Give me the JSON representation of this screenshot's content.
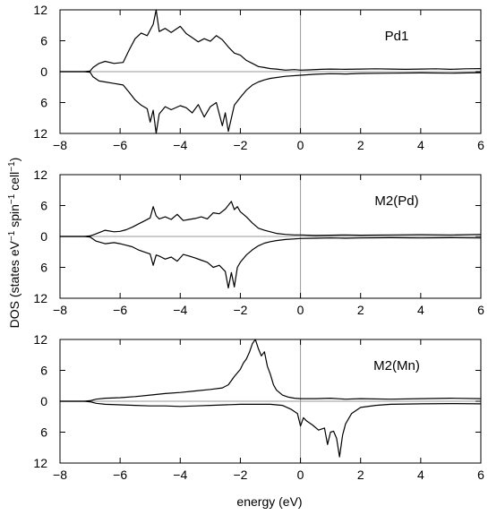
{
  "chart_data": {
    "type": "line",
    "ylabel_parts": [
      "DOS (states eV",
      "−1",
      " spin",
      "−1",
      " cell",
      "−1",
      ")"
    ],
    "xlabel": "energy (eV)",
    "xlim": [
      -8,
      6
    ],
    "xticks": [
      -8,
      -6,
      -4,
      -2,
      0,
      2,
      4,
      6
    ],
    "ylim": [
      -12,
      12
    ],
    "yticks": [
      12,
      6,
      0,
      6,
      12
    ],
    "panels": [
      {
        "label": "Pd1",
        "series": [
          {
            "spin": "up",
            "x": [
              -8,
              -7.2,
              -7,
              -6.9,
              -6.7,
              -6.5,
              -6.2,
              -5.9,
              -5.7,
              -5.5,
              -5.3,
              -5.1,
              -4.9,
              -4.8,
              -4.7,
              -4.5,
              -4.3,
              -4.0,
              -3.8,
              -3.6,
              -3.4,
              -3.2,
              -3.0,
              -2.8,
              -2.6,
              -2.4,
              -2.2,
              -2.0,
              -1.8,
              -1.6,
              -1.4,
              -1.2,
              -1.0,
              -0.8,
              -0.5,
              -0.2,
              0,
              0.3,
              0.7,
              1.0,
              1.5,
              2.0,
              2.5,
              3.0,
              3.5,
              4.0,
              4.5,
              5.0,
              5.5,
              6.0
            ],
            "y": [
              0,
              0,
              0.1,
              0.8,
              1.6,
              2.0,
              1.6,
              1.8,
              4.2,
              6.4,
              7.5,
              7.0,
              9.2,
              12.0,
              7.8,
              8.4,
              7.6,
              8.8,
              7.4,
              6.6,
              5.8,
              6.4,
              5.9,
              7.0,
              6.2,
              4.8,
              3.6,
              3.2,
              2.2,
              1.6,
              1.0,
              0.8,
              0.6,
              0.5,
              0.3,
              0.4,
              0.3,
              0.35,
              0.45,
              0.5,
              0.45,
              0.5,
              0.55,
              0.5,
              0.45,
              0.5,
              0.55,
              0.45,
              0.55,
              0.6
            ]
          },
          {
            "spin": "down",
            "x": [
              -8,
              -7.2,
              -7,
              -6.9,
              -6.7,
              -6.5,
              -6.2,
              -5.9,
              -5.7,
              -5.5,
              -5.3,
              -5.1,
              -5.0,
              -4.9,
              -4.8,
              -4.7,
              -4.5,
              -4.3,
              -4.0,
              -3.8,
              -3.6,
              -3.4,
              -3.2,
              -3.0,
              -2.8,
              -2.6,
              -2.5,
              -2.4,
              -2.2,
              -2.0,
              -1.8,
              -1.6,
              -1.4,
              -1.2,
              -1.0,
              -0.5,
              0,
              0.5,
              1.0,
              1.5,
              2.0,
              3.0,
              4.0,
              5.0,
              6.0
            ],
            "y": [
              0,
              0,
              -0.1,
              -1.0,
              -1.8,
              -2.0,
              -2.3,
              -2.6,
              -4.0,
              -5.5,
              -6.5,
              -7.2,
              -9.8,
              -7.5,
              -12.0,
              -8.2,
              -6.8,
              -7.4,
              -6.6,
              -7.0,
              -8.0,
              -6.4,
              -8.8,
              -6.8,
              -6.0,
              -10.5,
              -8.0,
              -11.6,
              -6.5,
              -5.0,
              -3.6,
              -2.6,
              -2.0,
              -1.6,
              -1.3,
              -0.9,
              -0.7,
              -0.5,
              -0.4,
              -0.45,
              -0.35,
              -0.3,
              -0.25,
              -0.3,
              -0.2
            ]
          }
        ]
      },
      {
        "label": "M2(Pd)",
        "series": [
          {
            "spin": "up",
            "x": [
              -8,
              -7.2,
              -7,
              -6.8,
              -6.5,
              -6.2,
              -6.0,
              -5.8,
              -5.6,
              -5.4,
              -5.2,
              -5.0,
              -4.9,
              -4.8,
              -4.7,
              -4.5,
              -4.3,
              -4.1,
              -3.9,
              -3.7,
              -3.5,
              -3.3,
              -3.1,
              -2.9,
              -2.7,
              -2.5,
              -2.3,
              -2.2,
              -2.1,
              -2.0,
              -1.8,
              -1.6,
              -1.4,
              -1.2,
              -1.0,
              -0.8,
              -0.5,
              -0.2,
              0,
              0.5,
              1.0,
              1.5,
              2.0,
              3.0,
              4.0,
              5.0,
              6.0
            ],
            "y": [
              0,
              0,
              0.1,
              0.5,
              1.2,
              0.9,
              1.0,
              1.3,
              1.8,
              2.4,
              3.0,
              3.6,
              5.8,
              4.0,
              3.4,
              3.8,
              3.3,
              4.3,
              3.1,
              3.3,
              3.5,
              3.8,
              3.4,
              4.6,
              4.4,
              5.3,
              6.8,
              5.2,
              5.8,
              4.8,
              3.8,
              2.6,
              1.6,
              1.2,
              0.9,
              0.6,
              0.4,
              0.3,
              0.3,
              0.2,
              0.25,
              0.3,
              0.25,
              0.3,
              0.35,
              0.3,
              0.4
            ]
          },
          {
            "spin": "down",
            "x": [
              -8,
              -7.2,
              -7,
              -6.8,
              -6.5,
              -6.2,
              -6.0,
              -5.8,
              -5.6,
              -5.4,
              -5.2,
              -5.0,
              -4.9,
              -4.8,
              -4.7,
              -4.5,
              -4.3,
              -4.1,
              -3.9,
              -3.7,
              -3.5,
              -3.3,
              -3.1,
              -2.9,
              -2.7,
              -2.5,
              -2.4,
              -2.3,
              -2.2,
              -2.1,
              -2.0,
              -1.8,
              -1.6,
              -1.4,
              -1.2,
              -1.0,
              -0.8,
              -0.5,
              0,
              0.5,
              1.0,
              1.5,
              2.0,
              3.0,
              4.0,
              5.0,
              6.0
            ],
            "y": [
              0,
              0,
              -0.1,
              -0.9,
              -1.4,
              -1.2,
              -1.4,
              -1.7,
              -2.0,
              -2.6,
              -3.0,
              -3.4,
              -5.6,
              -3.6,
              -3.8,
              -4.4,
              -4.0,
              -4.8,
              -3.5,
              -3.8,
              -4.2,
              -4.6,
              -5.0,
              -6.0,
              -5.6,
              -6.8,
              -10.0,
              -7.0,
              -9.8,
              -6.0,
              -5.0,
              -3.6,
              -2.6,
              -1.8,
              -1.3,
              -1.0,
              -0.8,
              -0.6,
              -0.4,
              -0.35,
              -0.3,
              -0.35,
              -0.3,
              -0.25,
              -0.3,
              -0.25,
              -0.3
            ]
          }
        ]
      },
      {
        "label": "M2(Mn)",
        "series": [
          {
            "spin": "up",
            "x": [
              -8,
              -7.2,
              -7,
              -6.8,
              -6.5,
              -6.0,
              -5.5,
              -5.0,
              -4.5,
              -4.0,
              -3.5,
              -3.0,
              -2.6,
              -2.4,
              -2.2,
              -2.0,
              -1.9,
              -1.8,
              -1.7,
              -1.6,
              -1.5,
              -1.4,
              -1.3,
              -1.2,
              -1.1,
              -1.0,
              -0.9,
              -0.8,
              -0.6,
              -0.4,
              -0.2,
              0,
              0.5,
              1.0,
              1.5,
              2.0,
              3.0,
              4.0,
              5.0,
              6.0
            ],
            "y": [
              0,
              0,
              0.1,
              0.4,
              0.6,
              0.7,
              0.9,
              1.2,
              1.5,
              1.7,
              2.0,
              2.3,
              2.6,
              3.2,
              4.8,
              6.2,
              7.4,
              8.2,
              9.5,
              11.2,
              12.0,
              10.2,
              8.8,
              9.6,
              6.8,
              5.2,
              3.2,
              2.2,
              1.2,
              0.8,
              0.6,
              0.5,
              0.5,
              0.6,
              0.4,
              0.5,
              0.4,
              0.5,
              0.6,
              0.5
            ]
          },
          {
            "spin": "down",
            "x": [
              -8,
              -7.2,
              -7,
              -6.8,
              -6.5,
              -6.0,
              -5.5,
              -5.0,
              -4.5,
              -4.0,
              -3.5,
              -3.0,
              -2.5,
              -2.0,
              -1.5,
              -1.0,
              -0.6,
              -0.3,
              -0.1,
              0,
              0.1,
              0.2,
              0.4,
              0.6,
              0.8,
              0.9,
              1.0,
              1.1,
              1.2,
              1.3,
              1.4,
              1.5,
              1.7,
              2.0,
              2.5,
              3.0,
              4.0,
              5.0,
              6.0
            ],
            "y": [
              0,
              0,
              -0.1,
              -0.4,
              -0.6,
              -0.7,
              -0.8,
              -0.9,
              -0.9,
              -1.0,
              -0.9,
              -0.8,
              -0.7,
              -0.6,
              -0.6,
              -0.6,
              -0.8,
              -1.6,
              -2.4,
              -4.8,
              -3.2,
              -3.8,
              -4.6,
              -5.6,
              -5.2,
              -8.4,
              -6.0,
              -5.8,
              -7.2,
              -10.8,
              -6.6,
              -4.4,
              -2.4,
              -1.2,
              -0.8,
              -0.6,
              -0.5,
              -0.45,
              -0.5
            ]
          }
        ]
      }
    ]
  }
}
